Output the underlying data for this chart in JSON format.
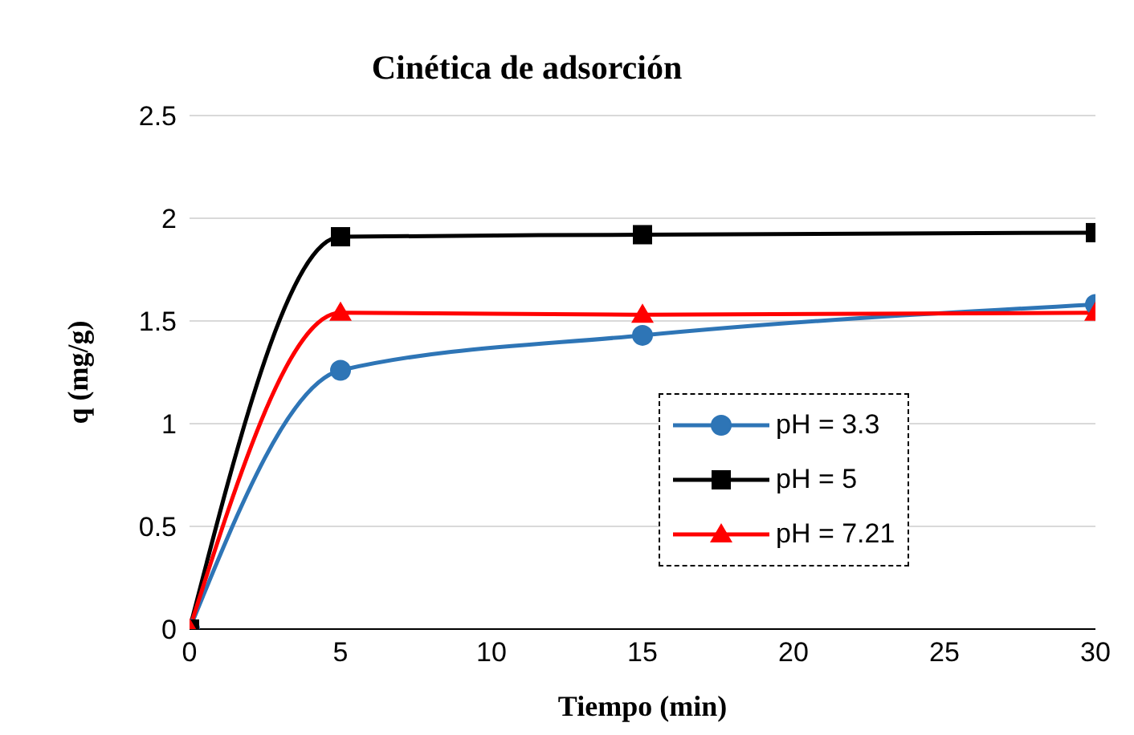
{
  "chart_data": {
    "type": "line",
    "title": "Cinética de adsorción",
    "xlabel": "Tiempo (min)",
    "ylabel": "q (mg/g)",
    "x": [
      0,
      5,
      15,
      30
    ],
    "series": [
      {
        "name": "pH = 3.3",
        "color": "#2e75b6",
        "values": [
          0,
          1.26,
          1.43,
          1.58
        ],
        "marker": "circle"
      },
      {
        "name": "pH = 5",
        "color": "#000000",
        "values": [
          0,
          1.91,
          1.92,
          1.93
        ],
        "marker": "square"
      },
      {
        "name": "pH = 7.21",
        "color": "#ff0000",
        "values": [
          0,
          1.54,
          1.53,
          1.54
        ],
        "marker": "triangle"
      }
    ],
    "xlim": [
      0,
      30
    ],
    "xticks": [
      0,
      5,
      10,
      15,
      20,
      25,
      30
    ],
    "ylim": [
      0,
      2.5
    ],
    "yticks": [
      0,
      0.5,
      1,
      1.5,
      2,
      2.5
    ],
    "grid": "y",
    "legend": "bottom right",
    "line_style": "solid"
  }
}
